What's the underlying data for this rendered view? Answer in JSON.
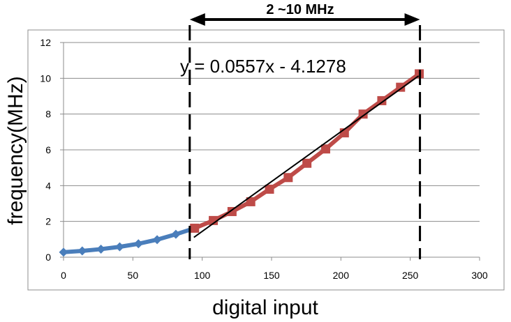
{
  "chart_data": {
    "type": "line",
    "title": "",
    "xlabel": "digital input",
    "ylabel": "frequency(MHz)",
    "xlim": [
      0,
      300
    ],
    "ylim": [
      0,
      12
    ],
    "x_ticks": [
      "0",
      "50",
      "100",
      "150",
      "200",
      "250",
      "300"
    ],
    "y_ticks": [
      "0",
      "2",
      "4",
      "6",
      "8",
      "10",
      "12"
    ],
    "grid": "horizontal",
    "series": [
      {
        "color": "#4a7ebb",
        "marker": "diamond",
        "x": [
          0,
          13.5,
          27,
          40.5,
          54,
          67.5,
          81,
          94.5
        ],
        "y": [
          0.28,
          0.35,
          0.45,
          0.58,
          0.75,
          0.98,
          1.28,
          1.62
        ]
      },
      {
        "color": "#be4b48",
        "marker": "square",
        "x": [
          94.5,
          108,
          121.5,
          135,
          148.5,
          162,
          175.5,
          189,
          202.5,
          216,
          229.5,
          243,
          256.5
        ],
        "y": [
          1.62,
          2.05,
          2.55,
          3.1,
          3.8,
          4.45,
          5.25,
          6.05,
          6.95,
          8.0,
          8.75,
          9.5,
          10.25
        ]
      }
    ],
    "trendline": {
      "slope": 0.0557,
      "intercept": -4.1278,
      "x_start": 94,
      "x_end": 256,
      "color": "#000000"
    },
    "annotations": {
      "equation": "y = 0.0557x - 4.1278",
      "range_label": "2 ~10 MHz",
      "range_x": [
        91,
        257
      ]
    }
  }
}
